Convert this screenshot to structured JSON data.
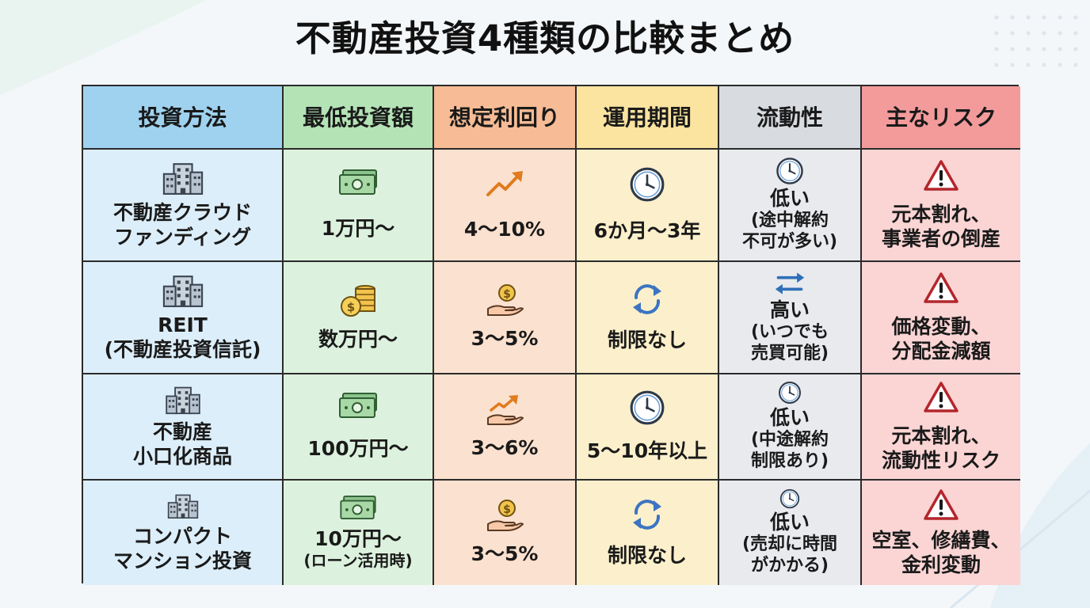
{
  "title": "不動産投資4種類の比較まとめ",
  "colors": {
    "header_method": "#9fd2ef",
    "header_min": "#b4e3b6",
    "header_yield": "#f7bc95",
    "header_period": "#fbe3a0",
    "header_liquidity": "#d8dbe0",
    "header_risk": "#f39b9b"
  },
  "headers": [
    "投資方法",
    "最低投資額",
    "想定利回り",
    "運用期間",
    "流動性",
    "主なリスク"
  ],
  "rows": [
    {
      "method": "不動産クラウド\nファンディング",
      "method_icon": "office-building-icon",
      "min_investment": "1万円〜",
      "min_note": "",
      "min_icon": "banknote-icon",
      "yield": "4〜10%",
      "yield_icon": "trending-up-arrow-icon",
      "period": "6か月〜3年",
      "period_icon": "clock-icon",
      "liquidity_level": "低い",
      "liquidity_note": "(途中解約\n不可が多い)",
      "liquidity_icon": "clock-icon",
      "risk": "元本割れ、\n事業者の倒産",
      "risk_icon": "warning-icon"
    },
    {
      "method": "REIT\n(不動産投資信託)",
      "method_icon": "office-building-icon",
      "min_investment": "数万円〜",
      "min_note": "",
      "min_icon": "coin-stack-icon",
      "yield": "3〜5%",
      "yield_icon": "hand-coin-icon",
      "period": "制限なし",
      "period_icon": "refresh-cycle-icon",
      "liquidity_level": "高い",
      "liquidity_note": "(いつでも\n売買可能)",
      "liquidity_icon": "swap-arrows-icon",
      "risk": "価格変動、\n分配金減額",
      "risk_icon": "warning-icon"
    },
    {
      "method": "不動産\n小口化商品",
      "method_icon": "office-building-icon",
      "min_investment": "100万円〜",
      "min_note": "",
      "min_icon": "banknote-icon",
      "yield": "3〜6%",
      "yield_icon": "hand-growth-icon",
      "period": "5〜10年以上",
      "period_icon": "clock-icon",
      "liquidity_level": "低い",
      "liquidity_note": "(中途解約\n制限あり)",
      "liquidity_icon": "clock-icon",
      "risk": "元本割れ、\n流動性リスク",
      "risk_icon": "warning-icon"
    },
    {
      "method": "コンパクト\nマンション投資",
      "method_icon": "apartment-building-icon",
      "min_investment": "10万円〜",
      "min_note": "(ローン活用時)",
      "min_icon": "banknote-icon",
      "yield": "3〜5%",
      "yield_icon": "hand-coin-icon",
      "period": "制限なし",
      "period_icon": "refresh-cycle-icon",
      "liquidity_level": "低い",
      "liquidity_note": "(売却に時間\nがかかる)",
      "liquidity_icon": "clock-icon",
      "risk": "空室、修繕費、\n金利変動",
      "risk_icon": "warning-icon"
    }
  ]
}
